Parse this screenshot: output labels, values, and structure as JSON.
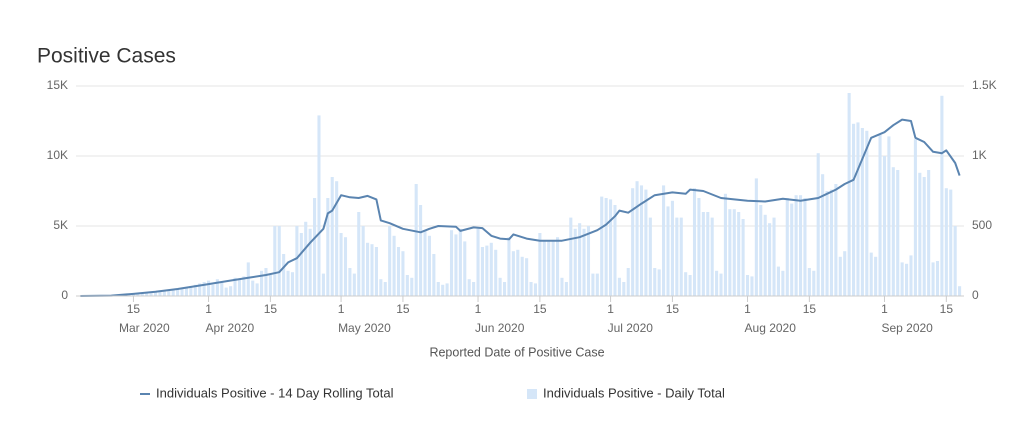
{
  "chart_data": {
    "type": "combo",
    "title": "Positive Cases",
    "xlabel": "Reported Date of Positive Case",
    "xlim": [
      "2020-03-02",
      "2020-09-19"
    ],
    "xticks": [
      {
        "value": "2020-03-15",
        "label": "15"
      },
      {
        "value": "2020-04-01",
        "label": "1"
      },
      {
        "value": "2020-04-15",
        "label": "15"
      },
      {
        "value": "2020-05-01",
        "label": "1"
      },
      {
        "value": "2020-05-15",
        "label": "15"
      },
      {
        "value": "2020-06-01",
        "label": "1"
      },
      {
        "value": "2020-06-15",
        "label": "15"
      },
      {
        "value": "2020-07-01",
        "label": "1"
      },
      {
        "value": "2020-07-15",
        "label": "15"
      },
      {
        "value": "2020-08-01",
        "label": "1"
      },
      {
        "value": "2020-08-15",
        "label": "15"
      },
      {
        "value": "2020-09-01",
        "label": "1"
      },
      {
        "value": "2020-09-15",
        "label": "15"
      }
    ],
    "xticks_months": [
      {
        "value": "2020-03-01",
        "label": "Mar 2020"
      },
      {
        "value": "2020-04-01",
        "label": "Apr 2020"
      },
      {
        "value": "2020-05-01",
        "label": "May 2020"
      },
      {
        "value": "2020-06-01",
        "label": "Jun 2020"
      },
      {
        "value": "2020-07-01",
        "label": "Jul 2020"
      },
      {
        "value": "2020-08-01",
        "label": "Aug 2020"
      },
      {
        "value": "2020-09-01",
        "label": "Sep 2020"
      }
    ],
    "ylim": [
      0,
      15000
    ],
    "yticks": [
      0,
      {
        "value": 5000,
        "label": "5K"
      },
      {
        "value": 10000,
        "label": "10K"
      },
      {
        "value": 15000,
        "label": "15K"
      }
    ],
    "y2lim": [
      0,
      1500
    ],
    "y2ticks": [
      0,
      500,
      {
        "value": 1000,
        "label": "1K"
      },
      {
        "value": 1500,
        "label": "1.5K"
      }
    ],
    "grid": true,
    "legend": "bottom",
    "series": [
      {
        "name": "Individuals Positive - 14 Day Rolling Total",
        "type": "line",
        "color": "#5a84b0",
        "x": [
          "2020-03-03",
          "2020-03-10",
          "2020-03-15",
          "2020-03-20",
          "2020-03-25",
          "2020-04-01",
          "2020-04-05",
          "2020-04-10",
          "2020-04-14",
          "2020-04-17",
          "2020-04-19",
          "2020-04-21",
          "2020-04-24",
          "2020-04-27",
          "2020-04-28",
          "2020-04-29",
          "2020-05-01",
          "2020-05-03",
          "2020-05-05",
          "2020-05-07",
          "2020-05-09",
          "2020-05-10",
          "2020-05-12",
          "2020-05-15",
          "2020-05-19",
          "2020-05-21",
          "2020-05-23",
          "2020-05-27",
          "2020-05-28",
          "2020-05-31",
          "2020-06-02",
          "2020-06-04",
          "2020-06-06",
          "2020-06-08",
          "2020-06-09",
          "2020-06-12",
          "2020-06-15",
          "2020-06-20",
          "2020-06-24",
          "2020-06-28",
          "2020-06-30",
          "2020-07-02",
          "2020-07-03",
          "2020-07-05",
          "2020-07-08",
          "2020-07-11",
          "2020-07-15",
          "2020-07-18",
          "2020-07-19",
          "2020-07-22",
          "2020-07-26",
          "2020-08-01",
          "2020-08-05",
          "2020-08-09",
          "2020-08-13",
          "2020-08-17",
          "2020-08-19",
          "2020-08-21",
          "2020-08-23",
          "2020-08-25",
          "2020-08-27",
          "2020-08-29",
          "2020-09-01",
          "2020-09-03",
          "2020-09-05",
          "2020-09-07",
          "2020-09-08",
          "2020-09-10",
          "2020-09-12",
          "2020-09-14",
          "2020-09-15",
          "2020-09-17",
          "2020-09-18"
        ],
        "values": [
          0,
          30,
          150,
          300,
          500,
          850,
          1050,
          1300,
          1500,
          1700,
          2400,
          2700,
          3800,
          4800,
          5900,
          6100,
          7200,
          7050,
          7000,
          7150,
          6900,
          5400,
          5200,
          4800,
          4550,
          4800,
          5000,
          4950,
          4650,
          4900,
          4850,
          4300,
          4100,
          4050,
          4400,
          4100,
          3950,
          3950,
          4200,
          4700,
          5100,
          5700,
          6100,
          5950,
          6600,
          7200,
          7400,
          7300,
          7600,
          7500,
          7000,
          6800,
          6750,
          6950,
          6800,
          7000,
          7300,
          7600,
          8000,
          8300,
          9800,
          11300,
          11700,
          12200,
          12600,
          12500,
          11300,
          11000,
          10300,
          10200,
          10400,
          9500,
          8600
        ]
      },
      {
        "name": "Individuals Positive - Daily Total",
        "type": "bar",
        "axis": "y2",
        "color": "#d5e6f8",
        "x": [
          "2020-03-03",
          "2020-03-04",
          "2020-03-05",
          "2020-03-06",
          "2020-03-07",
          "2020-03-08",
          "2020-03-09",
          "2020-03-10",
          "2020-03-11",
          "2020-03-12",
          "2020-03-13",
          "2020-03-14",
          "2020-03-15",
          "2020-03-16",
          "2020-03-17",
          "2020-03-18",
          "2020-03-19",
          "2020-03-20",
          "2020-03-21",
          "2020-03-22",
          "2020-03-23",
          "2020-03-24",
          "2020-03-25",
          "2020-03-26",
          "2020-03-27",
          "2020-03-28",
          "2020-03-29",
          "2020-03-30",
          "2020-03-31",
          "2020-04-01",
          "2020-04-02",
          "2020-04-03",
          "2020-04-04",
          "2020-04-05",
          "2020-04-06",
          "2020-04-07",
          "2020-04-08",
          "2020-04-09",
          "2020-04-10",
          "2020-04-11",
          "2020-04-12",
          "2020-04-13",
          "2020-04-14",
          "2020-04-15",
          "2020-04-16",
          "2020-04-17",
          "2020-04-18",
          "2020-04-19",
          "2020-04-20",
          "2020-04-21",
          "2020-04-22",
          "2020-04-23",
          "2020-04-24",
          "2020-04-25",
          "2020-04-26",
          "2020-04-27",
          "2020-04-28",
          "2020-04-29",
          "2020-04-30",
          "2020-05-01",
          "2020-05-02",
          "2020-05-03",
          "2020-05-04",
          "2020-05-05",
          "2020-05-06",
          "2020-05-07",
          "2020-05-08",
          "2020-05-09",
          "2020-05-10",
          "2020-05-11",
          "2020-05-12",
          "2020-05-13",
          "2020-05-14",
          "2020-05-15",
          "2020-05-16",
          "2020-05-17",
          "2020-05-18",
          "2020-05-19",
          "2020-05-20",
          "2020-05-21",
          "2020-05-22",
          "2020-05-23",
          "2020-05-24",
          "2020-05-25",
          "2020-05-26",
          "2020-05-27",
          "2020-05-28",
          "2020-05-29",
          "2020-05-30",
          "2020-05-31",
          "2020-06-01",
          "2020-06-02",
          "2020-06-03",
          "2020-06-04",
          "2020-06-05",
          "2020-06-06",
          "2020-06-07",
          "2020-06-08",
          "2020-06-09",
          "2020-06-10",
          "2020-06-11",
          "2020-06-12",
          "2020-06-13",
          "2020-06-14",
          "2020-06-15",
          "2020-06-16",
          "2020-06-17",
          "2020-06-18",
          "2020-06-19",
          "2020-06-20",
          "2020-06-21",
          "2020-06-22",
          "2020-06-23",
          "2020-06-24",
          "2020-06-25",
          "2020-06-26",
          "2020-06-27",
          "2020-06-28",
          "2020-06-29",
          "2020-06-30",
          "2020-07-01",
          "2020-07-02",
          "2020-07-03",
          "2020-07-04",
          "2020-07-05",
          "2020-07-06",
          "2020-07-07",
          "2020-07-08",
          "2020-07-09",
          "2020-07-10",
          "2020-07-11",
          "2020-07-12",
          "2020-07-13",
          "2020-07-14",
          "2020-07-15",
          "2020-07-16",
          "2020-07-17",
          "2020-07-18",
          "2020-07-19",
          "2020-07-20",
          "2020-07-21",
          "2020-07-22",
          "2020-07-23",
          "2020-07-24",
          "2020-07-25",
          "2020-07-26",
          "2020-07-27",
          "2020-07-28",
          "2020-07-29",
          "2020-07-30",
          "2020-07-31",
          "2020-08-01",
          "2020-08-02",
          "2020-08-03",
          "2020-08-04",
          "2020-08-05",
          "2020-08-06",
          "2020-08-07",
          "2020-08-08",
          "2020-08-09",
          "2020-08-10",
          "2020-08-11",
          "2020-08-12",
          "2020-08-13",
          "2020-08-14",
          "2020-08-15",
          "2020-08-16",
          "2020-08-17",
          "2020-08-18",
          "2020-08-19",
          "2020-08-20",
          "2020-08-21",
          "2020-08-22",
          "2020-08-23",
          "2020-08-24",
          "2020-08-25",
          "2020-08-26",
          "2020-08-27",
          "2020-08-28",
          "2020-08-29",
          "2020-08-30",
          "2020-08-31",
          "2020-09-01",
          "2020-09-02",
          "2020-09-03",
          "2020-09-04",
          "2020-09-05",
          "2020-09-06",
          "2020-09-07",
          "2020-09-08",
          "2020-09-09",
          "2020-09-10",
          "2020-09-11",
          "2020-09-12",
          "2020-09-13",
          "2020-09-14",
          "2020-09-15",
          "2020-09-16",
          "2020-09-17",
          "2020-09-18"
        ],
        "values": [
          0,
          0,
          1,
          1,
          2,
          2,
          3,
          4,
          5,
          6,
          8,
          10,
          12,
          14,
          16,
          18,
          20,
          25,
          30,
          35,
          40,
          45,
          50,
          55,
          60,
          70,
          80,
          90,
          100,
          110,
          80,
          120,
          100,
          60,
          70,
          130,
          120,
          140,
          240,
          110,
          90,
          180,
          200,
          150,
          500,
          500,
          300,
          180,
          170,
          500,
          450,
          530,
          480,
          700,
          1290,
          160,
          700,
          850,
          820,
          450,
          420,
          200,
          160,
          600,
          500,
          380,
          370,
          350,
          120,
          100,
          500,
          430,
          350,
          320,
          150,
          130,
          800,
          650,
          470,
          430,
          300,
          100,
          80,
          90,
          470,
          440,
          480,
          390,
          120,
          100,
          480,
          350,
          360,
          380,
          330,
          130,
          100,
          420,
          320,
          330,
          280,
          270,
          100,
          90,
          450,
          400,
          390,
          400,
          420,
          130,
          100,
          560,
          480,
          520,
          480,
          500,
          160,
          160,
          710,
          700,
          690,
          650,
          130,
          100,
          200,
          770,
          820,
          790,
          760,
          560,
          200,
          190,
          790,
          640,
          680,
          560,
          560,
          170,
          150,
          770,
          700,
          600,
          600,
          560,
          180,
          160,
          730,
          620,
          620,
          600,
          550,
          150,
          140,
          840,
          650,
          580,
          520,
          560,
          210,
          180,
          700,
          660,
          720,
          720,
          700,
          200,
          180,
          1020,
          870,
          750,
          760,
          800,
          280,
          320,
          1450,
          1230,
          1240,
          1200,
          1180,
          310,
          280,
          1150,
          1000,
          1140,
          920,
          900,
          240,
          230,
          290,
          1120,
          880,
          850,
          900,
          240,
          250,
          1430,
          770,
          760,
          500,
          70
        ]
      }
    ]
  }
}
